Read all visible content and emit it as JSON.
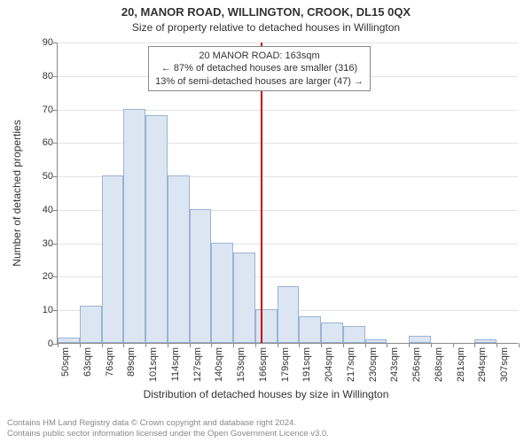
{
  "title": "20, MANOR ROAD, WILLINGTON, CROOK, DL15 0QX",
  "subtitle": "Size of property relative to detached houses in Willington",
  "chart": {
    "type": "histogram",
    "xunit": "sqm",
    "ylabel": "Number of detached properties",
    "xlabel": "Distribution of detached houses by size in Willington",
    "ylim": [
      0,
      90
    ],
    "yticks": [
      0,
      10,
      20,
      30,
      40,
      50,
      60,
      70,
      80,
      90
    ],
    "xticks": [
      50,
      63,
      76,
      89,
      101,
      114,
      127,
      140,
      153,
      166,
      179,
      191,
      204,
      217,
      230,
      243,
      256,
      268,
      281,
      294,
      307
    ],
    "values": [
      1.5,
      11,
      50,
      70,
      68,
      50,
      40,
      30,
      27,
      10,
      17,
      8,
      6,
      5,
      1,
      0,
      2,
      0,
      0,
      1,
      0
    ],
    "bar_fill": "#dce6f2",
    "bar_stroke": "#9ab3d5",
    "grid_color": "#e3e3e3",
    "refline_value": 163,
    "refline_color": "#cc0000",
    "axis_color": "#888888",
    "text_color": "#333333",
    "tick_fontsize": 11,
    "label_fontsize": 12,
    "title_fontsize": 13
  },
  "annotation": {
    "line1": "20 MANOR ROAD: 163sqm",
    "line2": "← 87% of detached houses are smaller (316)",
    "line3": "13% of semi-detached houses are larger (47) →",
    "border_color": "#888888"
  },
  "footer": {
    "line1": "Contains HM Land Registry data © Crown copyright and database right 2024.",
    "line2": "Contains public sector information licensed under the Open Government Licence v3.0.",
    "color": "#888888"
  }
}
